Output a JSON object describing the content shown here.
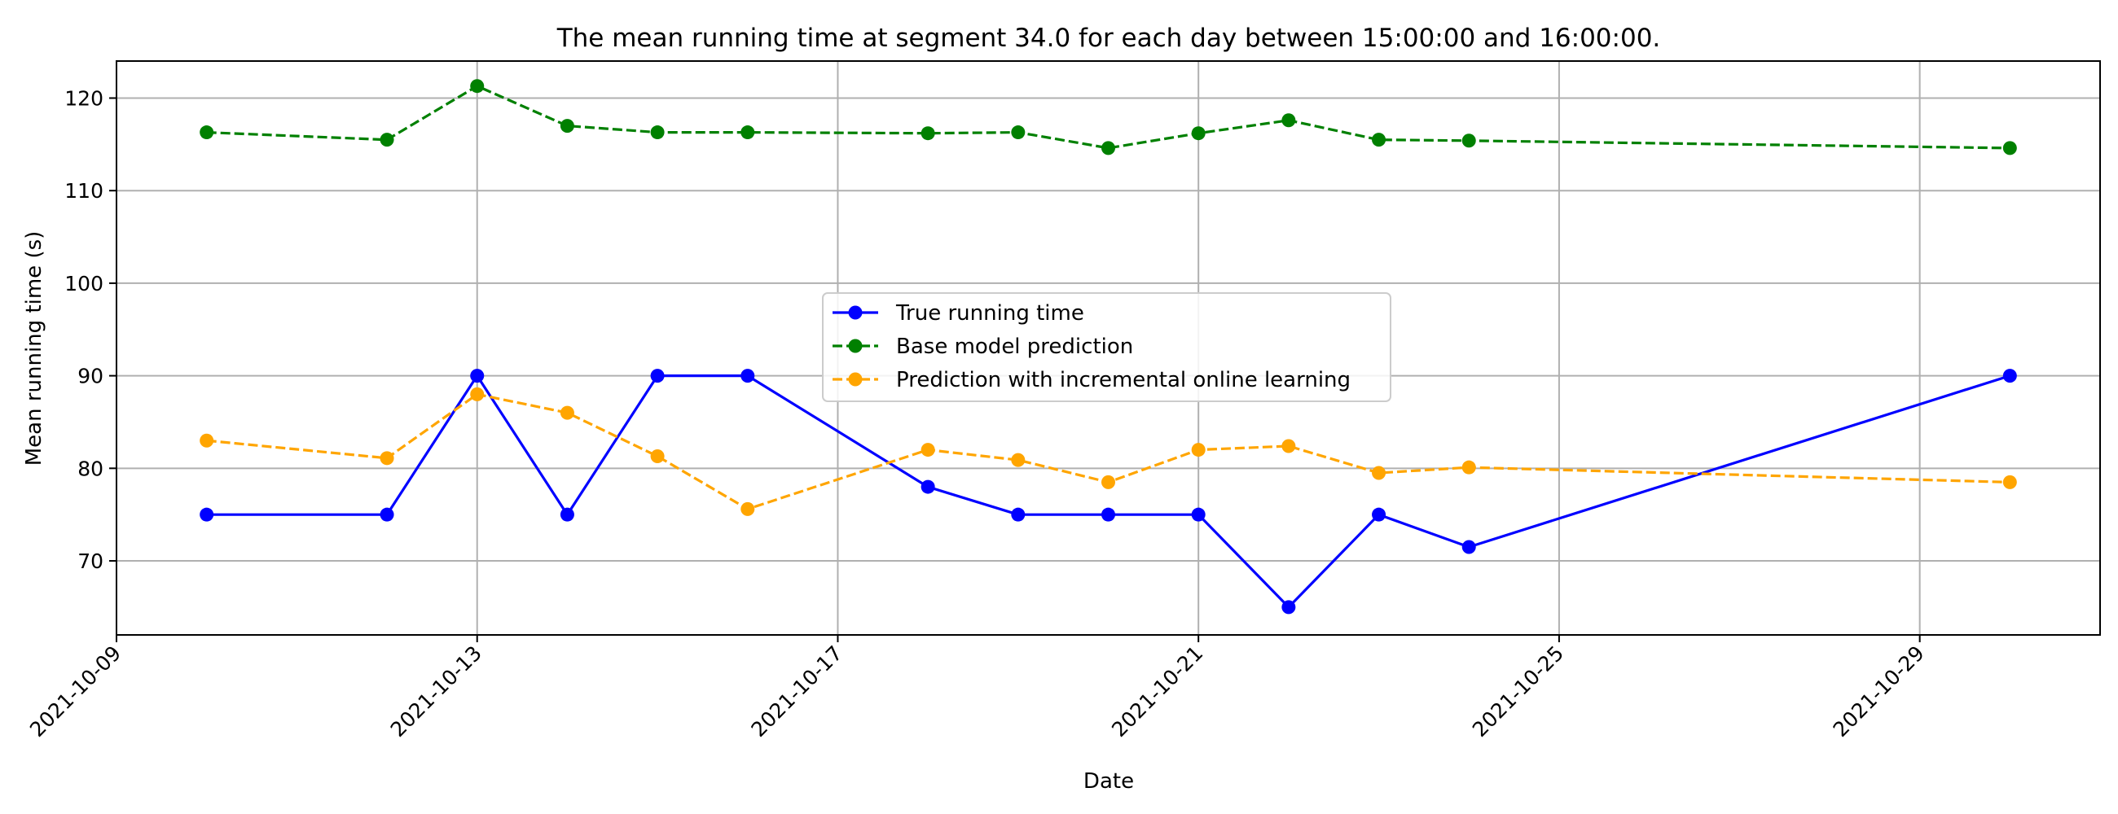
{
  "chart_data": {
    "type": "line",
    "title": "The mean running time at segment 34.0 for each day between 15:00:00 and 16:00:00.",
    "xlabel": "Date",
    "ylabel": "Mean running time (s)",
    "x": [
      "2021-10-10",
      "2021-10-12",
      "2021-10-13",
      "2021-10-14",
      "2021-10-15",
      "2021-10-16",
      "2021-10-18",
      "2021-10-19",
      "2021-10-20",
      "2021-10-21",
      "2021-10-22",
      "2021-10-23",
      "2021-10-24",
      "2021-10-30"
    ],
    "xlim": [
      "2021-10-09",
      "2021-10-31"
    ],
    "ylim": [
      62,
      124
    ],
    "x_ticks": [
      "2021-10-09",
      "2021-10-13",
      "2021-10-17",
      "2021-10-21",
      "2021-10-25",
      "2021-10-29"
    ],
    "y_ticks": [
      70,
      80,
      90,
      100,
      110,
      120
    ],
    "grid": true,
    "legend_position": "center",
    "series": [
      {
        "name": "True running time",
        "color": "#0000ff",
        "linestyle": "solid",
        "values": [
          75,
          75,
          90,
          75,
          90,
          90,
          78,
          75,
          75,
          75,
          65,
          75,
          71.5,
          90
        ]
      },
      {
        "name": "Base model prediction",
        "color": "#008000",
        "linestyle": "dashed",
        "values": [
          116.3,
          115.5,
          121.3,
          117.0,
          116.3,
          116.3,
          116.2,
          116.3,
          114.6,
          116.2,
          117.6,
          115.5,
          115.4,
          114.6
        ]
      },
      {
        "name": "Prediction with incremental online learning",
        "color": "#ffa500",
        "linestyle": "dashed",
        "values": [
          83.0,
          81.1,
          88.0,
          86.0,
          81.3,
          75.6,
          82.0,
          80.9,
          78.5,
          82.0,
          82.4,
          79.5,
          80.1,
          78.5
        ]
      }
    ]
  }
}
